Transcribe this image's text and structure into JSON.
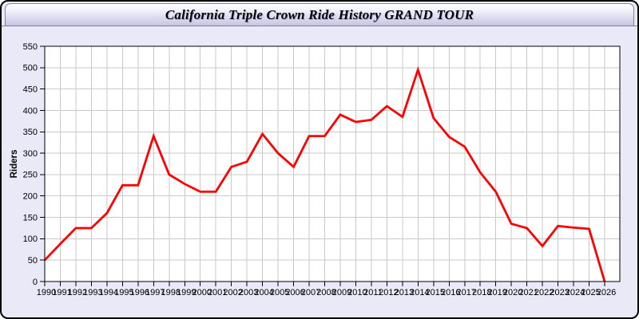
{
  "window": {
    "title": "California Triple Crown Ride History GRAND TOUR",
    "background_color": "#e9e9f8",
    "border_color": "#000000",
    "titlebar_gradient_top": "#ffffff",
    "titlebar_gradient_bottom": "#c6c6e2"
  },
  "chart_data": {
    "type": "line",
    "title": "California Triple Crown Ride History GRAND TOUR",
    "xlabel": "",
    "ylabel": "Riders",
    "x": [
      1990,
      1991,
      1992,
      1993,
      1994,
      1995,
      1996,
      1997,
      1998,
      1999,
      2000,
      2001,
      2002,
      2003,
      2004,
      2005,
      2006,
      2007,
      2008,
      2009,
      2010,
      2011,
      2012,
      2013,
      2014,
      2015,
      2016,
      2017,
      2018,
      2019,
      2020,
      2021,
      2022,
      2023,
      2024,
      2025,
      2026
    ],
    "series": [
      {
        "name": "Riders",
        "color": "#ff0000",
        "values": [
          50,
          88,
          125,
          125,
          160,
          225,
          225,
          340,
          250,
          228,
          210,
          210,
          268,
          280,
          345,
          300,
          268,
          340,
          340,
          390,
          373,
          378,
          410,
          385,
          495,
          382,
          338,
          315,
          255,
          210,
          135,
          125,
          83,
          130,
          126,
          123,
          0
        ]
      }
    ],
    "ylim": [
      0,
      550
    ],
    "ytick_step": 50,
    "grid": true,
    "legend": "none",
    "plot_background": "#ffffff",
    "grid_color": "#c9c9c9",
    "axis_color": "#000000",
    "tick_label_color": "#000000"
  }
}
